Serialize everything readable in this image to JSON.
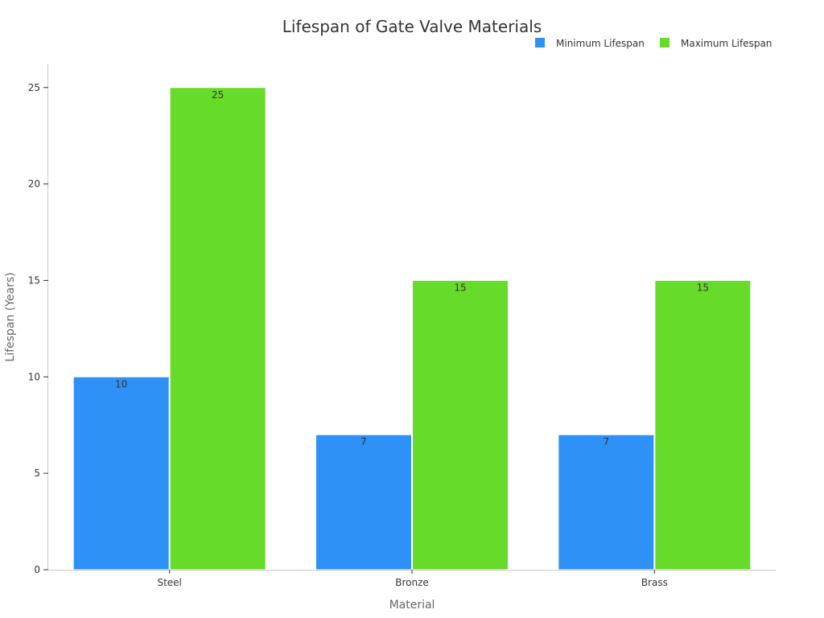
{
  "chart_data": {
    "type": "bar",
    "title": "Lifespan of Gate Valve Materials",
    "xlabel": "Material",
    "ylabel": "Lifespan (Years)",
    "categories": [
      "Steel",
      "Bronze",
      "Brass"
    ],
    "series": [
      {
        "name": "Minimum Lifespan",
        "values": [
          10,
          7,
          7
        ],
        "color": "#2e91f8"
      },
      {
        "name": "Maximum Lifespan",
        "values": [
          25,
          15,
          15
        ],
        "color": "#66db29"
      }
    ],
    "ylim": [
      0,
      26.2
    ],
    "yticks": [
      0,
      5,
      10,
      15,
      20,
      25
    ],
    "grid": false,
    "legend": "top-right",
    "data_labels": true
  }
}
